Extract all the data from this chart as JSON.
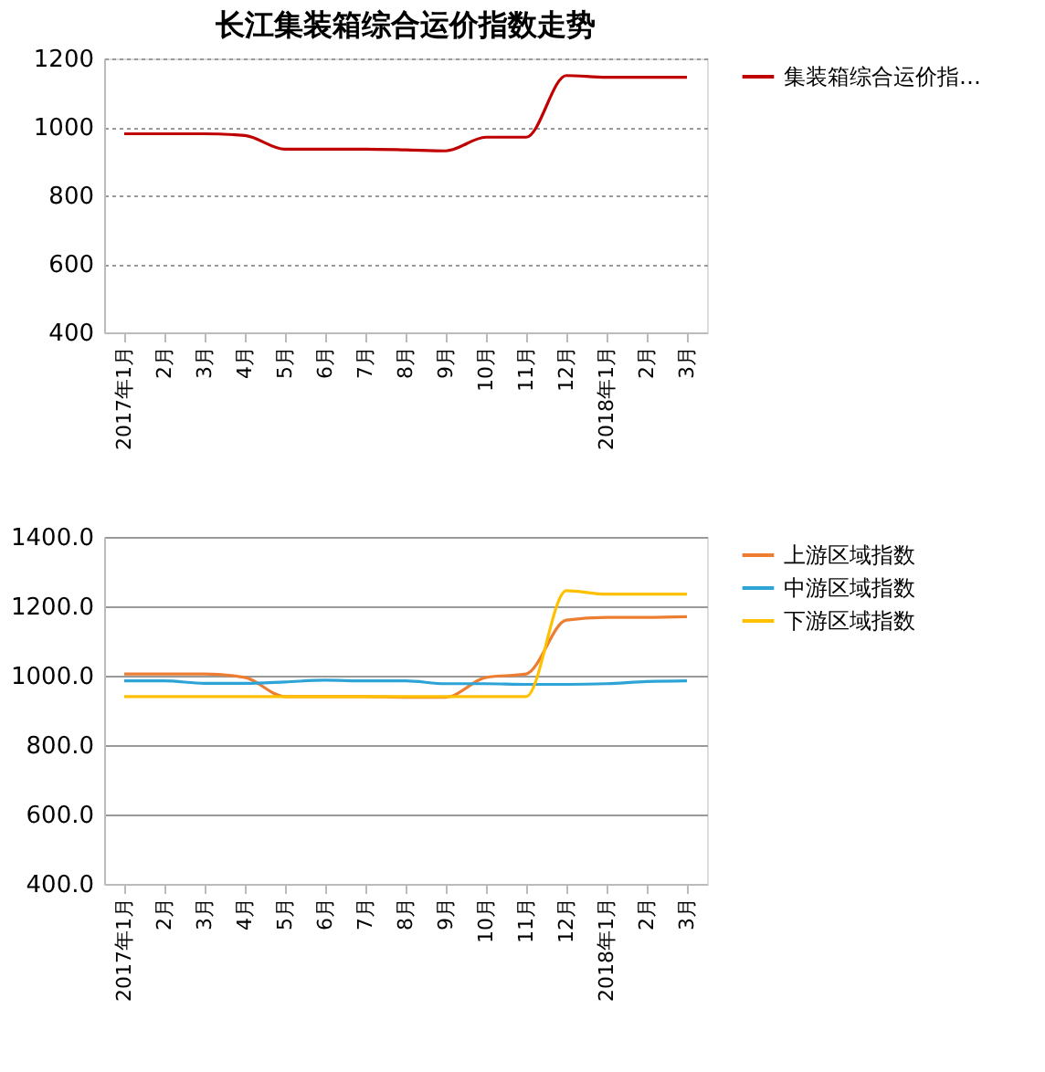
{
  "chart_data": [
    {
      "type": "line",
      "title": "长江集装箱综合运价指数走势",
      "categories": [
        "2017年1月",
        "2月",
        "3月",
        "4月",
        "5月",
        "6月",
        "7月",
        "8月",
        "9月",
        "10月",
        "11月",
        "12月",
        "2018年1月",
        "2月",
        "3月"
      ],
      "series": [
        {
          "name": "集装箱综合运价指…",
          "color": "#c00000",
          "values": [
            980,
            980,
            980,
            975,
            935,
            935,
            935,
            933,
            930,
            970,
            970,
            1150,
            1145,
            1145,
            1145
          ]
        }
      ],
      "ylim": [
        400,
        1200
      ],
      "yticks": [
        400,
        600,
        800,
        1000,
        1200
      ],
      "grid": "y",
      "legend": "right"
    },
    {
      "type": "line",
      "categories": [
        "2017年1月",
        "2月",
        "3月",
        "4月",
        "5月",
        "6月",
        "7月",
        "8月",
        "9月",
        "10月",
        "11月",
        "12月",
        "2018年1月",
        "2月",
        "3月"
      ],
      "series": [
        {
          "name": "上游区域指数",
          "color": "#ed7d31",
          "values": [
            1005,
            1005,
            1005,
            995,
            940,
            940,
            940,
            938,
            938,
            995,
            1005,
            1160,
            1168,
            1168,
            1170
          ]
        },
        {
          "name": "中游区域指数",
          "color": "#2ea3d5",
          "values": [
            985,
            985,
            978,
            978,
            982,
            987,
            985,
            985,
            977,
            977,
            975,
            975,
            977,
            983,
            985
          ]
        },
        {
          "name": "下游区域指数",
          "color": "#ffc000",
          "values": [
            940,
            940,
            940,
            940,
            940,
            940,
            940,
            940,
            940,
            940,
            940,
            1245,
            1235,
            1235,
            1235
          ]
        }
      ],
      "ylim": [
        400,
        1400
      ],
      "yticks": [
        {
          "value": 400,
          "label": "400.0"
        },
        {
          "value": 600,
          "label": "600.0"
        },
        {
          "value": 800,
          "label": "800.0"
        },
        {
          "value": 1000,
          "label": "1000.0"
        },
        {
          "value": 1200,
          "label": "1200.0"
        },
        {
          "value": 1400,
          "label": "1400.0"
        }
      ],
      "grid": "y",
      "legend": "right"
    }
  ]
}
